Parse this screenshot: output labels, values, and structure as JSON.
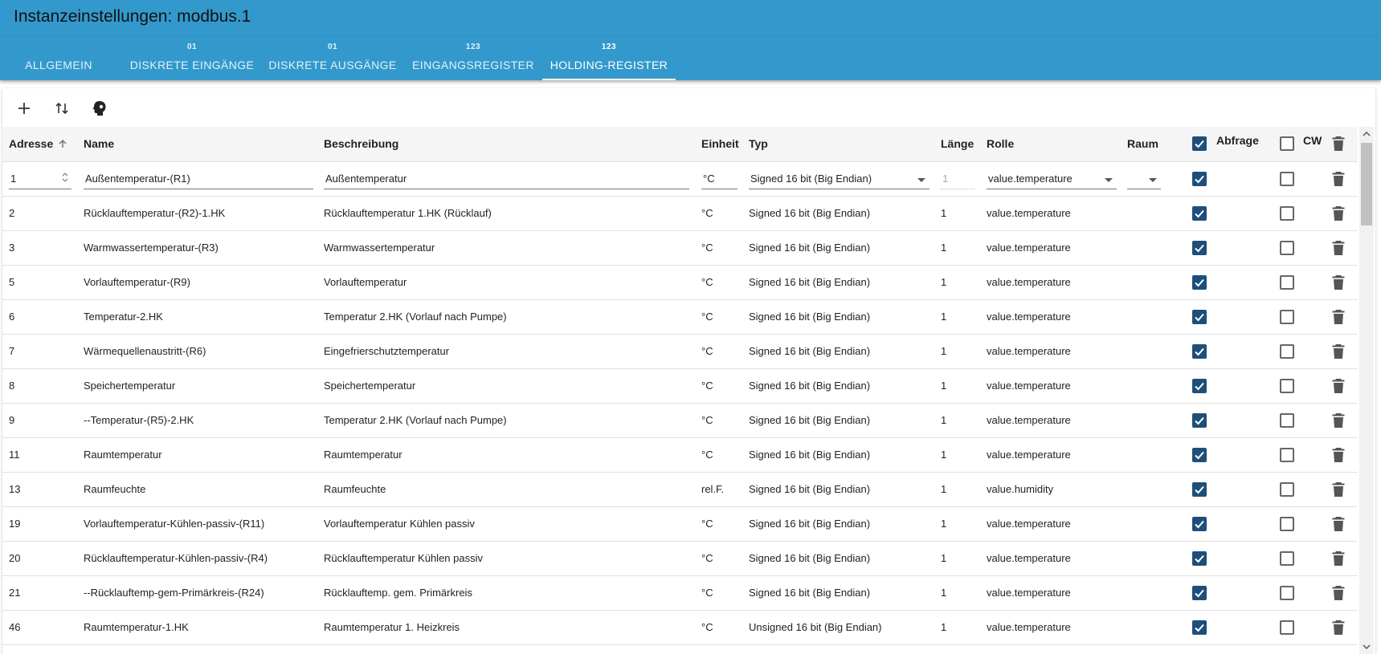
{
  "window": {
    "title": "Instanzeinstellungen: modbus.1"
  },
  "tabs": [
    {
      "badge": "",
      "label": "ALLGEMEIN"
    },
    {
      "badge": "01",
      "label": "DISKRETE EINGÄNGE"
    },
    {
      "badge": "01",
      "label": "DISKRETE AUSGÄNGE"
    },
    {
      "badge": "123",
      "label": "EINGANGSREGISTER"
    },
    {
      "badge": "123",
      "label": "HOLDING-REGISTER"
    }
  ],
  "toolbar": {
    "add_icon": "plus-icon",
    "import_export_icon": "swap-vertical-icon",
    "extra_icon": "head-icon"
  },
  "columns": {
    "address": "Adresse",
    "name": "Name",
    "description": "Beschreibung",
    "unit": "Einheit",
    "type": "Typ",
    "length": "Länge",
    "role": "Rolle",
    "room": "Raum",
    "poll": "Abfrage",
    "cw": "CW"
  },
  "editing_row": {
    "address": "1",
    "name": "Außentemperatur-(R1)",
    "description": "Außentemperatur",
    "unit": "°C",
    "type": "Signed 16 bit (Big Endian)",
    "length": "1",
    "role": "value.temperature",
    "room": "",
    "poll": true,
    "cw": false
  },
  "rows": [
    {
      "address": "2",
      "name": "Rücklauftemperatur-(R2)-1.HK",
      "description": "Rücklauftemperatur 1.HK (Rücklauf)",
      "unit": "°C",
      "type": "Signed 16 bit (Big Endian)",
      "length": "1",
      "role": "value.temperature",
      "poll": true,
      "cw": false
    },
    {
      "address": "3",
      "name": "Warmwassertemperatur-(R3)",
      "description": "Warmwassertemperatur",
      "unit": "°C",
      "type": "Signed 16 bit (Big Endian)",
      "length": "1",
      "role": "value.temperature",
      "poll": true,
      "cw": false
    },
    {
      "address": "5",
      "name": "Vorlauftemperatur-(R9)",
      "description": "Vorlauftemperatur",
      "unit": "°C",
      "type": "Signed 16 bit (Big Endian)",
      "length": "1",
      "role": "value.temperature",
      "poll": true,
      "cw": false
    },
    {
      "address": "6",
      "name": "Temperatur-2.HK",
      "description": "Temperatur 2.HK (Vorlauf nach Pumpe)",
      "unit": "°C",
      "type": "Signed 16 bit (Big Endian)",
      "length": "1",
      "role": "value.temperature",
      "poll": true,
      "cw": false
    },
    {
      "address": "7",
      "name": "Wärmequellenaustritt-(R6)",
      "description": "Eingefrierschutztemperatur",
      "unit": "°C",
      "type": "Signed 16 bit (Big Endian)",
      "length": "1",
      "role": "value.temperature",
      "poll": true,
      "cw": false
    },
    {
      "address": "8",
      "name": "Speichertemperatur",
      "description": "Speichertemperatur",
      "unit": "°C",
      "type": "Signed 16 bit (Big Endian)",
      "length": "1",
      "role": "value.temperature",
      "poll": true,
      "cw": false
    },
    {
      "address": "9",
      "name": "--Temperatur-(R5)-2.HK",
      "description": "Temperatur 2.HK (Vorlauf nach Pumpe)",
      "unit": "°C",
      "type": "Signed 16 bit (Big Endian)",
      "length": "1",
      "role": "value.temperature",
      "poll": true,
      "cw": false
    },
    {
      "address": "11",
      "name": "Raumtemperatur",
      "description": "Raumtemperatur",
      "unit": "°C",
      "type": "Signed 16 bit (Big Endian)",
      "length": "1",
      "role": "value.temperature",
      "poll": true,
      "cw": false
    },
    {
      "address": "13",
      "name": "Raumfeuchte",
      "description": "Raumfeuchte",
      "unit": "rel.F.",
      "type": "Signed 16 bit (Big Endian)",
      "length": "1",
      "role": "value.humidity",
      "poll": true,
      "cw": false
    },
    {
      "address": "19",
      "name": "Vorlauftemperatur-Kühlen-passiv-(R11)",
      "description": "Vorlauftemperatur Kühlen passiv",
      "unit": "°C",
      "type": "Signed 16 bit (Big Endian)",
      "length": "1",
      "role": "value.temperature",
      "poll": true,
      "cw": false
    },
    {
      "address": "20",
      "name": "Rücklauftemperatur-Kühlen-passiv-(R4)",
      "description": "Rücklauftemperatur Kühlen passiv",
      "unit": "°C",
      "type": "Signed 16 bit (Big Endian)",
      "length": "1",
      "role": "value.temperature",
      "poll": true,
      "cw": false
    },
    {
      "address": "21",
      "name": "--Rücklauftemp-gem-Primärkreis-(R24)",
      "description": "Rücklauftemp. gem. Primärkreis",
      "unit": "°C",
      "type": "Signed 16 bit (Big Endian)",
      "length": "1",
      "role": "value.temperature",
      "poll": true,
      "cw": false
    },
    {
      "address": "46",
      "name": "Raumtemperatur-1.HK",
      "description": "Raumtemperatur 1. Heizkreis",
      "unit": "°C",
      "type": "Unsigned 16 bit (Big Endian)",
      "length": "1",
      "role": "value.temperature",
      "poll": true,
      "cw": false
    }
  ]
}
